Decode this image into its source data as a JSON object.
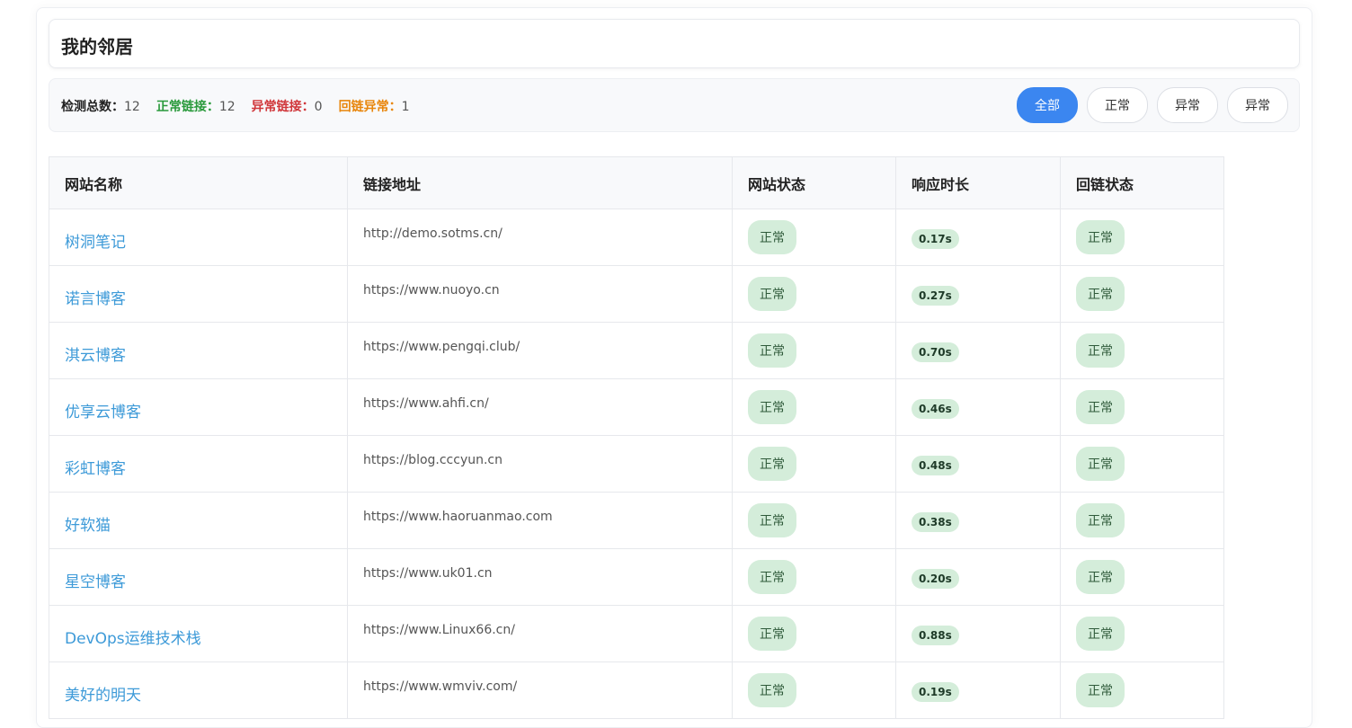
{
  "header": {
    "title": "我的邻居"
  },
  "stats": [
    {
      "label": "检测总数：",
      "value": "12"
    },
    {
      "label": "正常链接：",
      "value": "12"
    },
    {
      "label": "异常链接：",
      "value": "0"
    },
    {
      "label": "回链异常：",
      "value": "1"
    }
  ],
  "filters": [
    "全部",
    "正常",
    "异常",
    "异常"
  ],
  "table": {
    "headers": [
      "网站名称",
      "链接地址",
      "网站状态",
      "响应时长",
      "回链状态"
    ],
    "rows": [
      [
        "树洞笔记",
        "http://demo.sotms.cn/",
        "正常",
        "0.17s",
        "正常"
      ],
      [
        "诺言博客",
        "https://www.nuoyo.cn",
        "正常",
        "0.27s",
        "正常"
      ],
      [
        "淇云博客",
        "https://www.pengqi.club/",
        "正常",
        "0.70s",
        "正常"
      ],
      [
        "优享云博客",
        "https://www.ahfi.cn/",
        "正常",
        "0.46s",
        "正常"
      ],
      [
        "彩虹博客",
        "https://blog.cccyun.cn",
        "正常",
        "0.48s",
        "正常"
      ],
      [
        "好软猫",
        "https://www.haoruanmao.com",
        "正常",
        "0.38s",
        "正常"
      ],
      [
        "星空博客",
        "https://www.uk01.cn",
        "正常",
        "0.20s",
        "正常"
      ],
      [
        "DevOps运维技术栈",
        "https://www.Linux66.cn/",
        "正常",
        "0.88s",
        "正常"
      ],
      [
        "美好的明天",
        "https://www.wmviv.com/",
        "正常",
        "0.19s",
        "正常"
      ]
    ]
  }
}
